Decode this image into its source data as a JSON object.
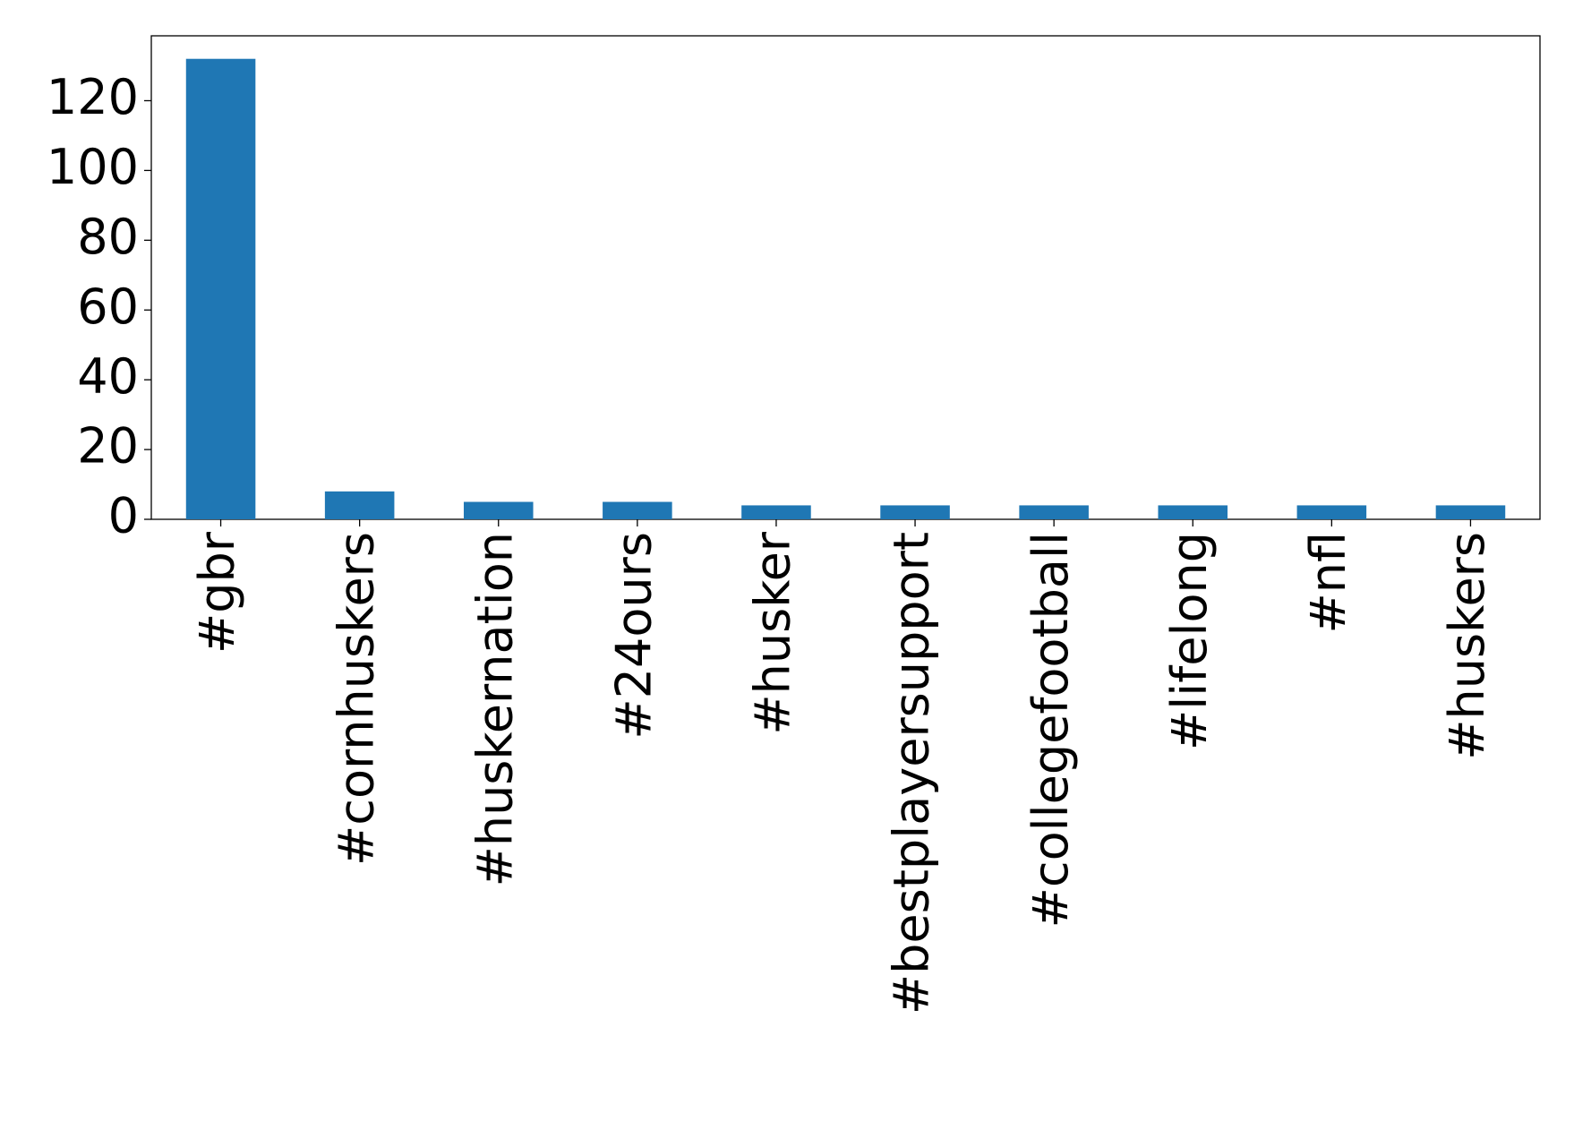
{
  "chart_data": {
    "type": "bar",
    "categories": [
      "#gbr",
      "#cornhuskers",
      "#huskernation",
      "#24ours",
      "#husker",
      "#bestplayersupport",
      "#collegefootball",
      "#lifelong",
      "#nfl",
      "#huskers"
    ],
    "values": [
      132,
      8,
      5,
      5,
      4,
      4,
      4,
      4,
      4,
      4
    ],
    "color": "#1f77b4",
    "ylim": [
      0,
      138.6
    ],
    "yticks": [
      0,
      20,
      40,
      60,
      80,
      100,
      120
    ],
    "grid": false
  }
}
